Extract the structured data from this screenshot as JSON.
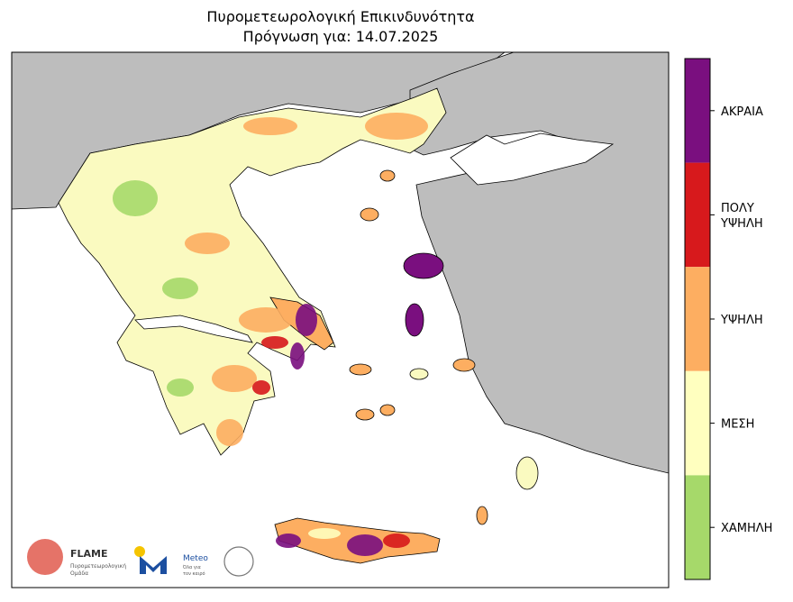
{
  "header": {
    "title": "Πυρομετεωρολογική Επικινδυνότητα",
    "subtitle": "Πρόγνωση για: 14.07.2025"
  },
  "legend": {
    "levels": [
      {
        "lines": [
          "ΑΚΡΑΙΑ"
        ],
        "color": "#7a0f7f"
      },
      {
        "lines": [
          "ΠΟΛΥ",
          "ΥΨΗΛΗ"
        ],
        "color": "#d7191c"
      },
      {
        "lines": [
          "ΥΨΗΛΗ"
        ],
        "color": "#fdae61"
      },
      {
        "lines": [
          "ΜΕΣΗ"
        ],
        "color": "#ffffbf"
      },
      {
        "lines": [
          "ΧΑΜΗΛΗ"
        ],
        "color": "#a6d96a"
      }
    ]
  },
  "logos": {
    "flame": "FLAME",
    "flame_sub": [
      "Πυρομετεωρολογική",
      "Ομάδα"
    ],
    "meteo": "Meteo",
    "meteo_sub": [
      "Όλα για",
      "τον καιρό"
    ]
  }
}
